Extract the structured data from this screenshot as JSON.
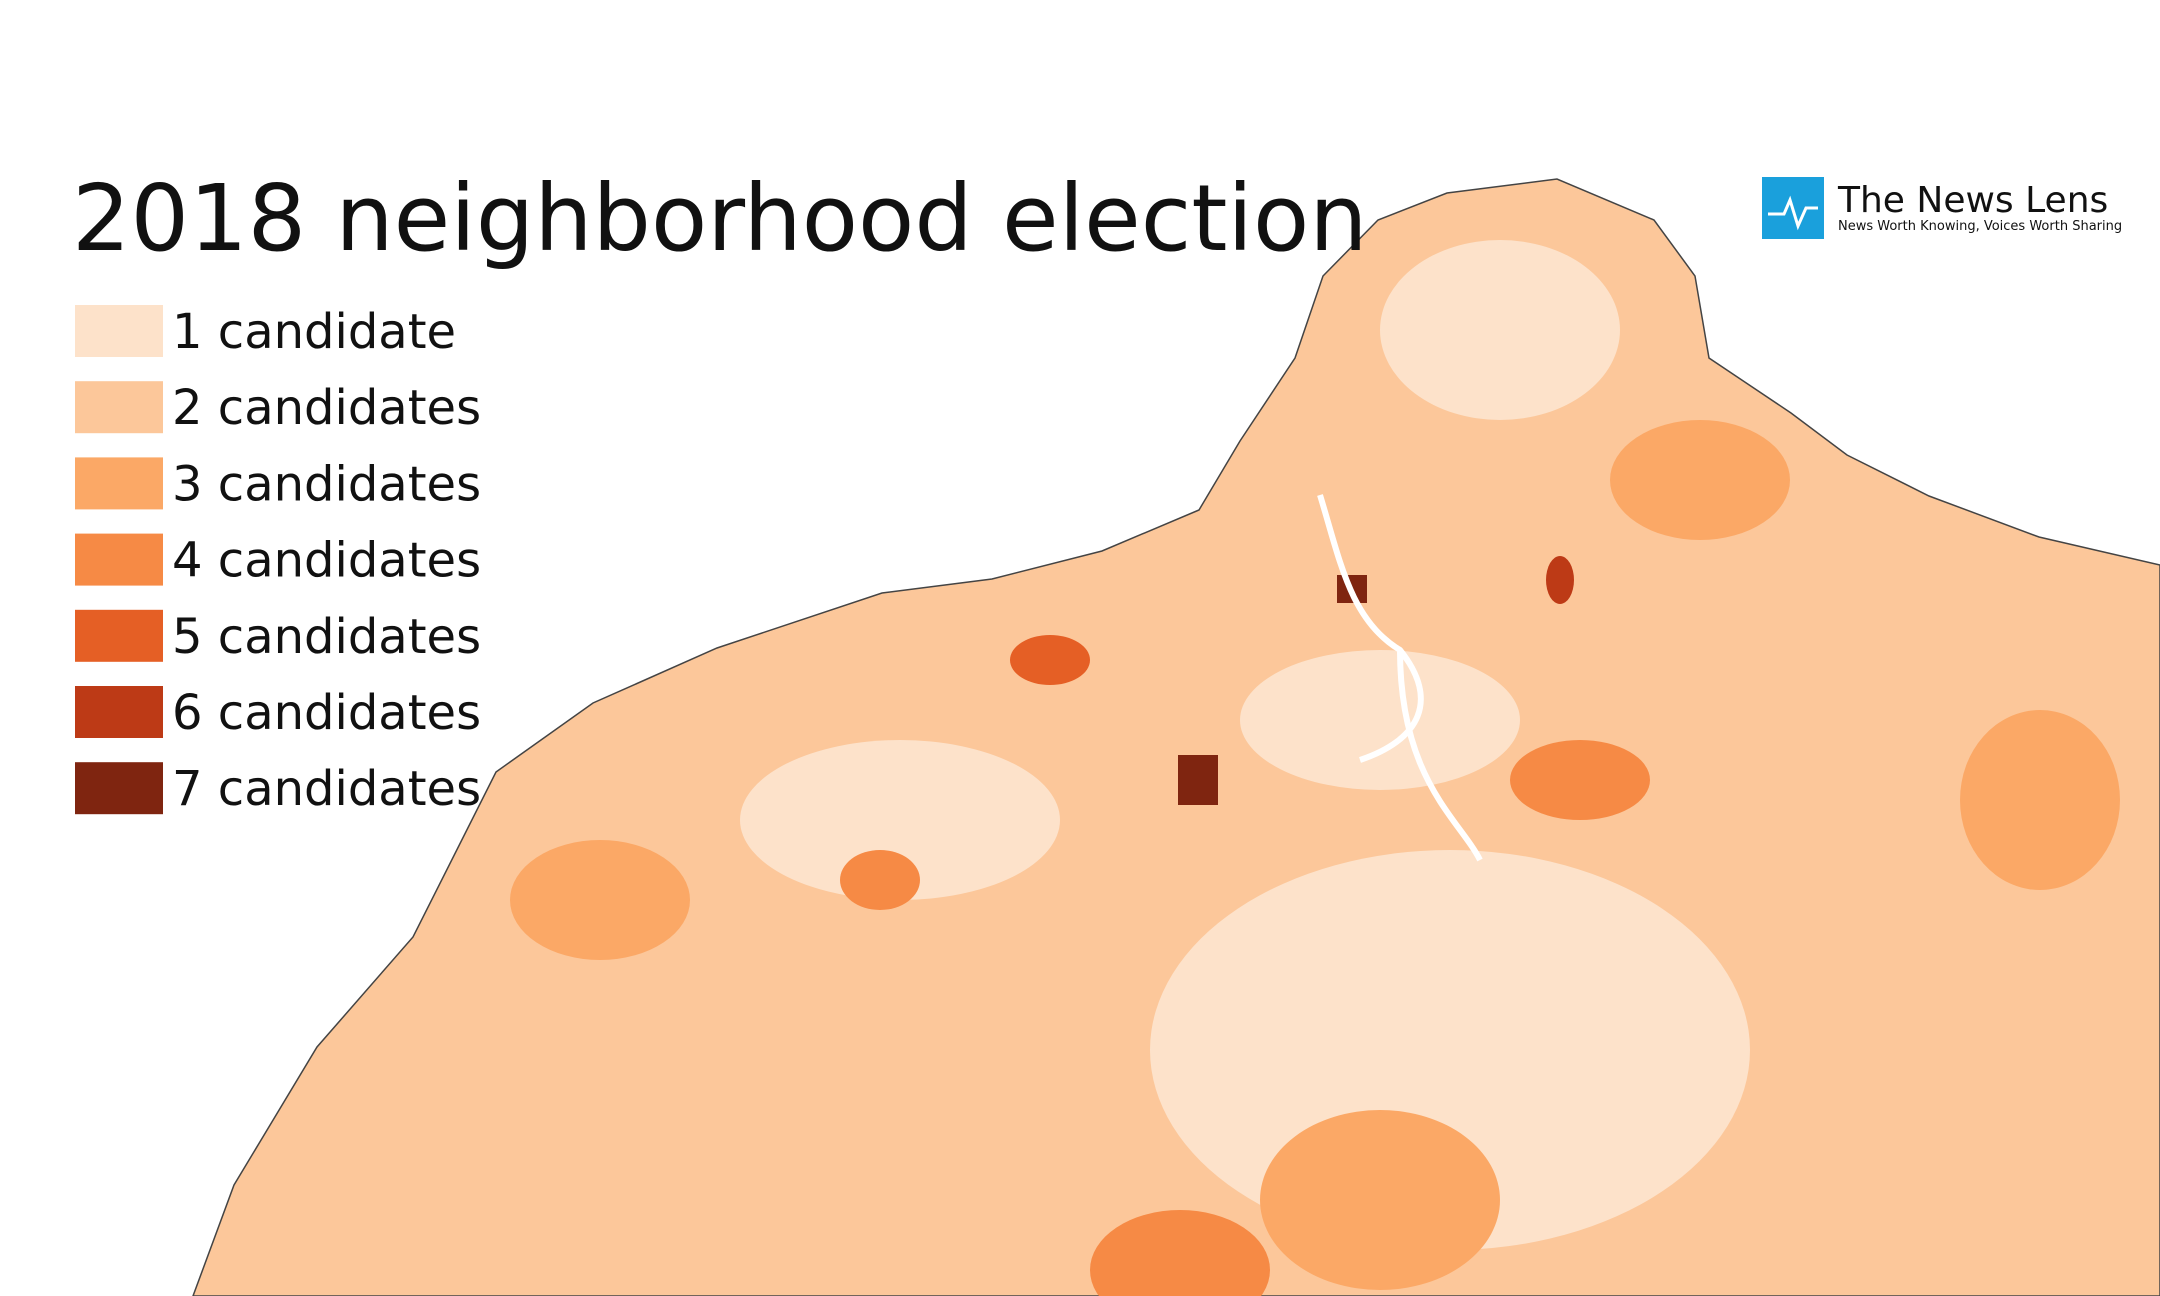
{
  "title": "2018 neighborhood election",
  "legend": [
    {
      "label": "1 candidate",
      "color": "#fde2ca"
    },
    {
      "label": "2 candidates",
      "color": "#fcc79a"
    },
    {
      "label": "3 candidates",
      "color": "#fba866"
    },
    {
      "label": "4 candidates",
      "color": "#f68a45"
    },
    {
      "label": "5 candidates",
      "color": "#e55f25"
    },
    {
      "label": "6 candidates",
      "color": "#bd3a16"
    },
    {
      "label": "7 candidates",
      "color": "#7f2510"
    }
  ],
  "logo": {
    "name": "The News Lens",
    "tagline": "News Worth Knowing, Voices Worth Sharing"
  }
}
